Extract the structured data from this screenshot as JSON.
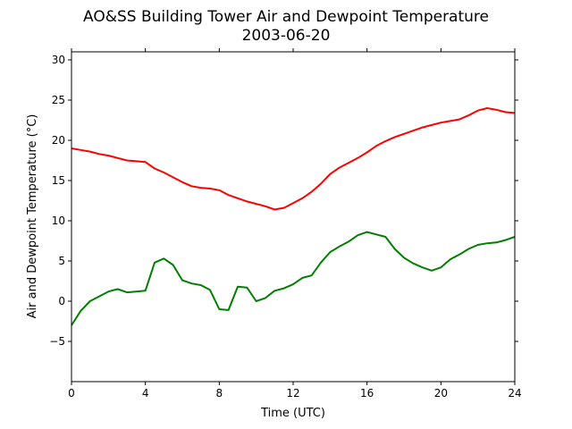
{
  "chart_data": {
    "type": "line",
    "title": "AO&SS Building Tower Air and Dewpoint Temperature",
    "subtitle": "2003-06-20",
    "xlabel": "Time (UTC)",
    "ylabel": "Air and Dewpoint Temperature (°C)",
    "xlim": [
      0,
      24
    ],
    "ylim": [
      -10,
      31
    ],
    "xticks": [
      0,
      4,
      8,
      12,
      16,
      20,
      24
    ],
    "yticks": [
      -5,
      0,
      5,
      10,
      15,
      20,
      25,
      30
    ],
    "grid": false,
    "legend": "none",
    "x": [
      0,
      0.5,
      1,
      1.5,
      2,
      2.5,
      3,
      3.5,
      4,
      4.5,
      5,
      5.5,
      6,
      6.5,
      7,
      7.5,
      8,
      8.5,
      9,
      9.5,
      10,
      10.5,
      11,
      11.5,
      12,
      12.5,
      13,
      13.5,
      14,
      14.5,
      15,
      15.5,
      16,
      16.5,
      17,
      17.5,
      18,
      18.5,
      19,
      19.5,
      20,
      20.5,
      21,
      21.5,
      22,
      22.5,
      23,
      23.5,
      24
    ],
    "series": [
      {
        "color": "#ff0000",
        "values": [
          19.0,
          18.8,
          18.6,
          18.3,
          18.1,
          17.8,
          17.5,
          17.4,
          17.3,
          16.5,
          16.0,
          15.4,
          14.8,
          14.3,
          14.1,
          14.0,
          13.8,
          13.2,
          12.8,
          12.4,
          12.1,
          11.8,
          11.4,
          11.6,
          12.2,
          12.8,
          13.6,
          14.6,
          15.8,
          16.6,
          17.2,
          17.8,
          18.5,
          19.3,
          19.9,
          20.4,
          20.8,
          21.2,
          21.6,
          21.9,
          22.2,
          22.4,
          22.6,
          23.1,
          23.7,
          24.0,
          23.8,
          23.5,
          23.4
        ]
      },
      {
        "color": "#008000",
        "values": [
          -3.0,
          -1.2,
          0.0,
          0.6,
          1.2,
          1.5,
          1.1,
          1.2,
          1.3,
          4.8,
          5.3,
          4.5,
          2.6,
          2.2,
          2.0,
          1.4,
          -1.0,
          -1.1,
          1.8,
          1.7,
          0.0,
          0.4,
          1.3,
          1.6,
          2.1,
          2.9,
          3.2,
          4.8,
          6.1,
          6.8,
          7.4,
          8.2,
          8.6,
          8.3,
          8.0,
          6.5,
          5.4,
          4.7,
          4.2,
          3.8,
          4.2,
          5.2,
          5.8,
          6.5,
          7.0,
          7.2,
          7.3,
          7.6,
          8.0
        ]
      }
    ]
  }
}
